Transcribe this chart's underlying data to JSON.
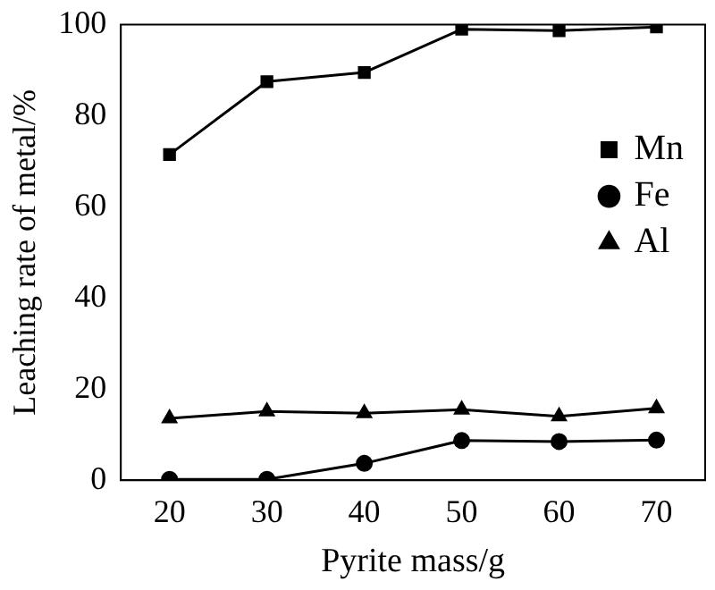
{
  "chart_data": {
    "type": "line",
    "xlabel": "Pyrite mass/g",
    "ylabel": "Leaching rate of metal/%",
    "x": [
      20,
      30,
      40,
      50,
      60,
      70
    ],
    "series": [
      {
        "name": "Mn",
        "color": "#000000",
        "marker": "square",
        "values": [
          71.5,
          87.5,
          89.5,
          99,
          98.7,
          99.5
        ]
      },
      {
        "name": "Fe",
        "color": "#000000",
        "marker": "circle",
        "values": [
          0.2,
          0.2,
          3.7,
          8.7,
          8.5,
          8.8
        ]
      },
      {
        "name": "Al",
        "color": "#000000",
        "marker": "triangle",
        "values": [
          13.6,
          15.1,
          14.7,
          15.5,
          14,
          15.8
        ]
      }
    ],
    "xlim": [
      15,
      75
    ],
    "xticks": [
      20,
      30,
      40,
      50,
      60,
      70
    ],
    "ylim": [
      0,
      100
    ],
    "yticks": [
      0,
      20,
      40,
      60,
      80,
      100
    ],
    "grid": false,
    "legend": "top right",
    "line_style": "solid"
  }
}
